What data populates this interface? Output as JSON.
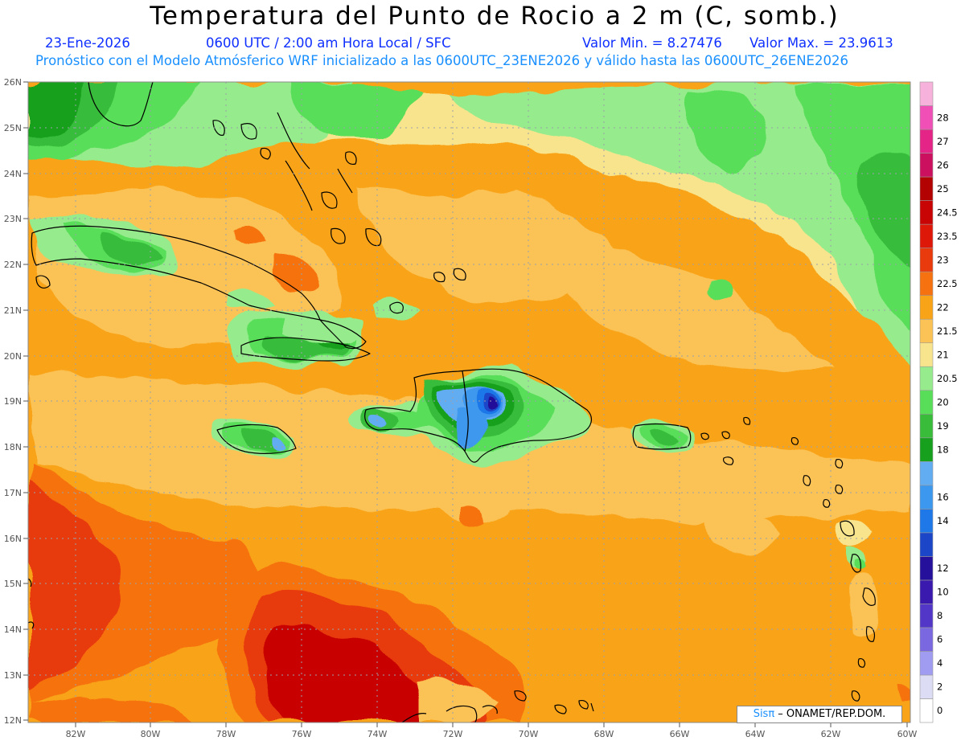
{
  "title": "Temperatura del Punto de Rocio a 2 m (C, somb.)",
  "subtitle": {
    "date": "23-Ene-2026",
    "time": "0600 UTC / 2:00 am Hora Local / SFC",
    "min": "Valor Min. = 8.27476",
    "max": "Valor Max. = 23.9613"
  },
  "forecast_line": "Pronóstico con el Modelo Atmósferico WRF inicializado a las 0600UTC_23ENE2026 y válido hasta las  0600UTC_26ENE2026",
  "credit": {
    "sis": "Sisπ",
    "rest": " – ONAMET/REP.DOM."
  },
  "lat_labels": [
    "26N",
    "25N",
    "24N",
    "23N",
    "22N",
    "21N",
    "20N",
    "19N",
    "18N",
    "17N",
    "16N",
    "15N",
    "14N",
    "13N",
    "12N"
  ],
  "lon_labels": [
    "82W",
    "80W",
    "78W",
    "76W",
    "74W",
    "72W",
    "70W",
    "68W",
    "66W",
    "64W",
    "62W",
    "60W"
  ],
  "legend": [
    {
      "label": "0",
      "color": "#ffffff"
    },
    {
      "label": "2",
      "color": "#dcdcf4"
    },
    {
      "label": "4",
      "color": "#a09cf2"
    },
    {
      "label": "6",
      "color": "#7a68e0"
    },
    {
      "label": "8",
      "color": "#5236c8"
    },
    {
      "label": "10",
      "color": "#3a1aae"
    },
    {
      "label": "12",
      "color": "#24109a"
    },
    {
      "label": "",
      "color": "#1c46c8"
    },
    {
      "label": "14",
      "color": "#1e78e8"
    },
    {
      "label": "16",
      "color": "#3c98ee"
    },
    {
      "label": "",
      "color": "#62acf2"
    },
    {
      "label": "18",
      "color": "#16a01e"
    },
    {
      "label": "19",
      "color": "#38bc3a"
    },
    {
      "label": "20",
      "color": "#58de58"
    },
    {
      "label": "20.5",
      "color": "#96ec8c"
    },
    {
      "label": "21",
      "color": "#f8e48c"
    },
    {
      "label": "21.5",
      "color": "#fbc256"
    },
    {
      "label": "22",
      "color": "#f9a418"
    },
    {
      "label": "22.5",
      "color": "#f67210"
    },
    {
      "label": "23",
      "color": "#e83a0c"
    },
    {
      "label": "23.5",
      "color": "#de1808"
    },
    {
      "label": "24.5",
      "color": "#c80404"
    },
    {
      "label": "25",
      "color": "#b20202"
    },
    {
      "label": "26",
      "color": "#cc1060"
    },
    {
      "label": "27",
      "color": "#e42486"
    },
    {
      "label": "28",
      "color": "#f050b6"
    },
    {
      "label": "",
      "color": "#f6b2da"
    }
  ]
}
